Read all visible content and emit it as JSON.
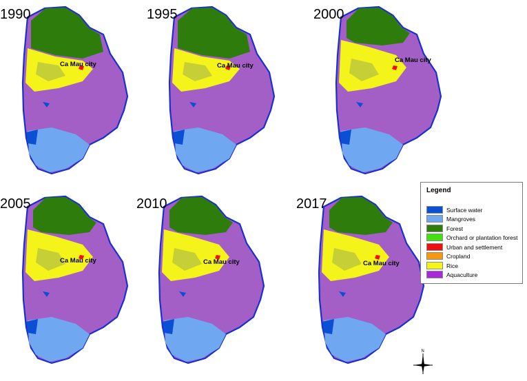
{
  "panels": [
    {
      "year": "1990",
      "city_label": "Ca Mau city"
    },
    {
      "year": "1995",
      "city_label": "Ca Mau city"
    },
    {
      "year": "2000",
      "city_label": "Ca Mau city"
    },
    {
      "year": "2005",
      "city_label": "Ca Mau city"
    },
    {
      "year": "2010",
      "city_label": "Ca Mau city"
    },
    {
      "year": "2017",
      "city_label": "Ca Mau city"
    }
  ],
  "legend": {
    "title": "Legend",
    "items": [
      {
        "label": "Surface water",
        "color": "#0a4fd4"
      },
      {
        "label": "Mangroves",
        "color": "#6fa8f0"
      },
      {
        "label": "Forest",
        "color": "#2e7d0c"
      },
      {
        "label": "Orchard or plantation forest",
        "color": "#44e010"
      },
      {
        "label": "Urban and settlement",
        "color": "#ee1111"
      },
      {
        "label": "Cropland",
        "color": "#f59a10"
      },
      {
        "label": " Rice",
        "color": "#f4f41a"
      },
      {
        "label": "Aquaculture",
        "color": "#a82cd6"
      }
    ]
  },
  "north_arrow": {
    "label": "N"
  }
}
